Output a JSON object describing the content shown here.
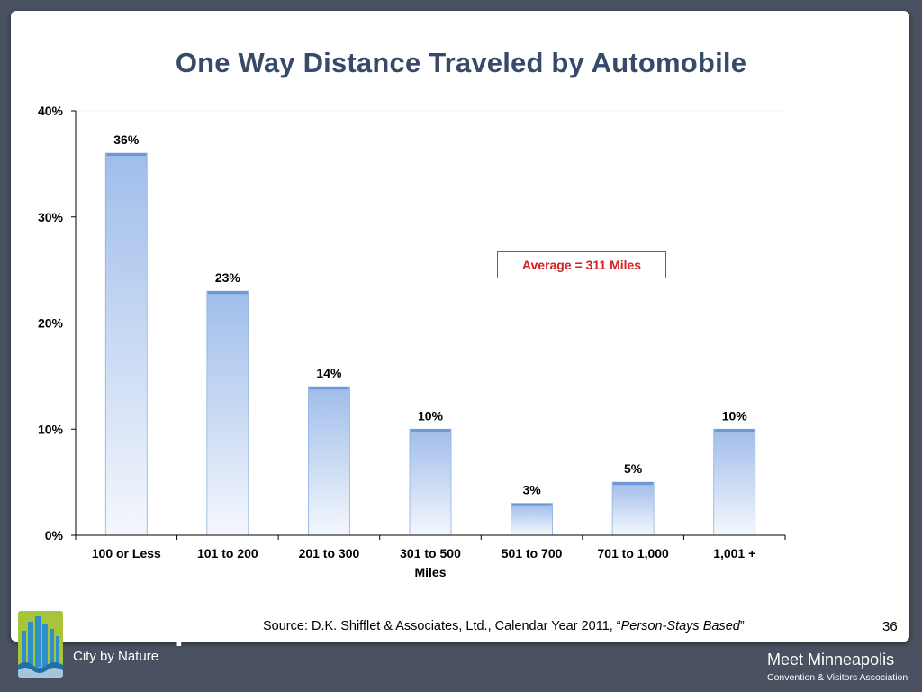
{
  "slide": {
    "title": "One Way Distance Traveled by Automobile",
    "callout": "Average = 311 Miles",
    "source_prefix": "Source: D.K. Shifflet & Associates, Ltd., Calendar Year 2011, “",
    "source_italic": "Person-Stays Based",
    "source_suffix": "”",
    "page_number": "36"
  },
  "branding": {
    "city_name": "Minneapolis",
    "city_tagline": "City by Nature",
    "org_name": "Meet Minneapolis",
    "org_subtitle": "Convention & Visitors Association"
  },
  "colors": {
    "title": "#384a6a",
    "bar_top": "#9fbdea",
    "bar_bottom": "#f4f7fd",
    "callout_border": "#d9322b",
    "callout_text": "#d32020",
    "background": "#4a5160",
    "logo_mark": "#a8c43a"
  },
  "chart_data": {
    "type": "bar",
    "title": "One Way Distance Traveled by Automobile",
    "categories": [
      "100 or Less",
      "101  to 200",
      "201 to 300",
      "301 to 500 Miles",
      "501 to 700",
      "701 to 1,000",
      "1,001 +"
    ],
    "category_lines": [
      [
        "100 or Less"
      ],
      [
        "101  to 200"
      ],
      [
        "201 to 300"
      ],
      [
        "301 to 500",
        "Miles"
      ],
      [
        "501 to 700"
      ],
      [
        "701 to 1,000"
      ],
      [
        "1,001 +"
      ]
    ],
    "values": [
      36,
      23,
      14,
      10,
      3,
      5,
      10
    ],
    "data_labels": [
      "36%",
      "23%",
      "14%",
      "10%",
      "3%",
      "5%",
      "10%"
    ],
    "ylim": [
      0,
      40
    ],
    "y_ticks": [
      0,
      10,
      20,
      30,
      40
    ],
    "y_tick_labels": [
      "0%",
      "10%",
      "20%",
      "30%",
      "40%"
    ],
    "xlabel": "",
    "ylabel": "",
    "grid": false,
    "legend": "none"
  }
}
